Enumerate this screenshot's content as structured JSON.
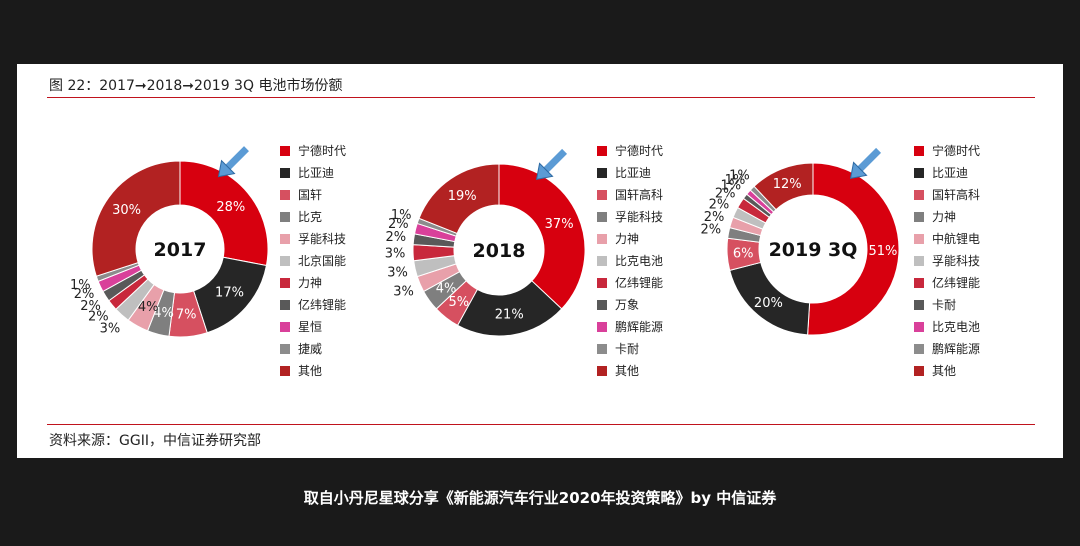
{
  "figure": {
    "title": "图 22：2017➞2018➞2019 3Q 电池市场份额",
    "source": "资料来源：GGII，中信证券研究部"
  },
  "caption": "取自小丹尼星球分享《新能源汽车行业2020年投资策略》by 中信证券",
  "chart_data": [
    {
      "type": "pie",
      "title": "2017",
      "categories": [
        "宁德时代",
        "比亚迪",
        "国轩",
        "比克",
        "孚能科技",
        "北京国能",
        "力神",
        "亿纬锂能",
        "星恒",
        "捷威",
        "其他"
      ],
      "values": [
        28,
        17,
        7,
        4,
        4,
        3,
        2,
        2,
        2,
        1,
        30
      ],
      "labels": [
        "28%",
        "17%",
        "7%",
        "4%",
        "4%",
        "3%",
        "2%",
        "2%",
        "2%",
        "1%",
        "30%"
      ],
      "colors": [
        "#d7000f",
        "#262626",
        "#d65060",
        "#7f7f7f",
        "#e8a0aa",
        "#bfbfbf",
        "#c8283c",
        "#595959",
        "#d9409a",
        "#8c8c8c",
        "#b22222"
      ]
    },
    {
      "type": "pie",
      "title": "2018",
      "categories": [
        "宁德时代",
        "比亚迪",
        "国轩高科",
        "孚能科技",
        "力神",
        "比克电池",
        "亿纬锂能",
        "万象",
        "鹏辉能源",
        "卡耐",
        "其他"
      ],
      "values": [
        37,
        21,
        5,
        4,
        3,
        3,
        3,
        2,
        2,
        1,
        19
      ],
      "labels": [
        "37%",
        "21%",
        "5%",
        "4%",
        "3%",
        "3%",
        "3%",
        "2%",
        "2%",
        "1%",
        "19%"
      ],
      "colors": [
        "#d7000f",
        "#262626",
        "#d65060",
        "#7f7f7f",
        "#e8a0aa",
        "#bfbfbf",
        "#c8283c",
        "#595959",
        "#d9409a",
        "#8c8c8c",
        "#b22222"
      ]
    },
    {
      "type": "pie",
      "title": "2019 3Q",
      "categories": [
        "宁德时代",
        "比亚迪",
        "国轩高科",
        "力神",
        "中航锂电",
        "孚能科技",
        "亿纬锂能",
        "卡耐",
        "比克电池",
        "鹏辉能源",
        "其他"
      ],
      "values": [
        51,
        20,
        6,
        2,
        2,
        2,
        2,
        1,
        1,
        1,
        12
      ],
      "labels": [
        "51%",
        "20%",
        "6%",
        "2%",
        "2%",
        "2%",
        "2%",
        "1%",
        "1%",
        "1%",
        "12%"
      ],
      "colors": [
        "#d7000f",
        "#262626",
        "#d65060",
        "#7f7f7f",
        "#e8a0aa",
        "#bfbfbf",
        "#c8283c",
        "#595959",
        "#d9409a",
        "#8c8c8c",
        "#b22222"
      ]
    }
  ]
}
